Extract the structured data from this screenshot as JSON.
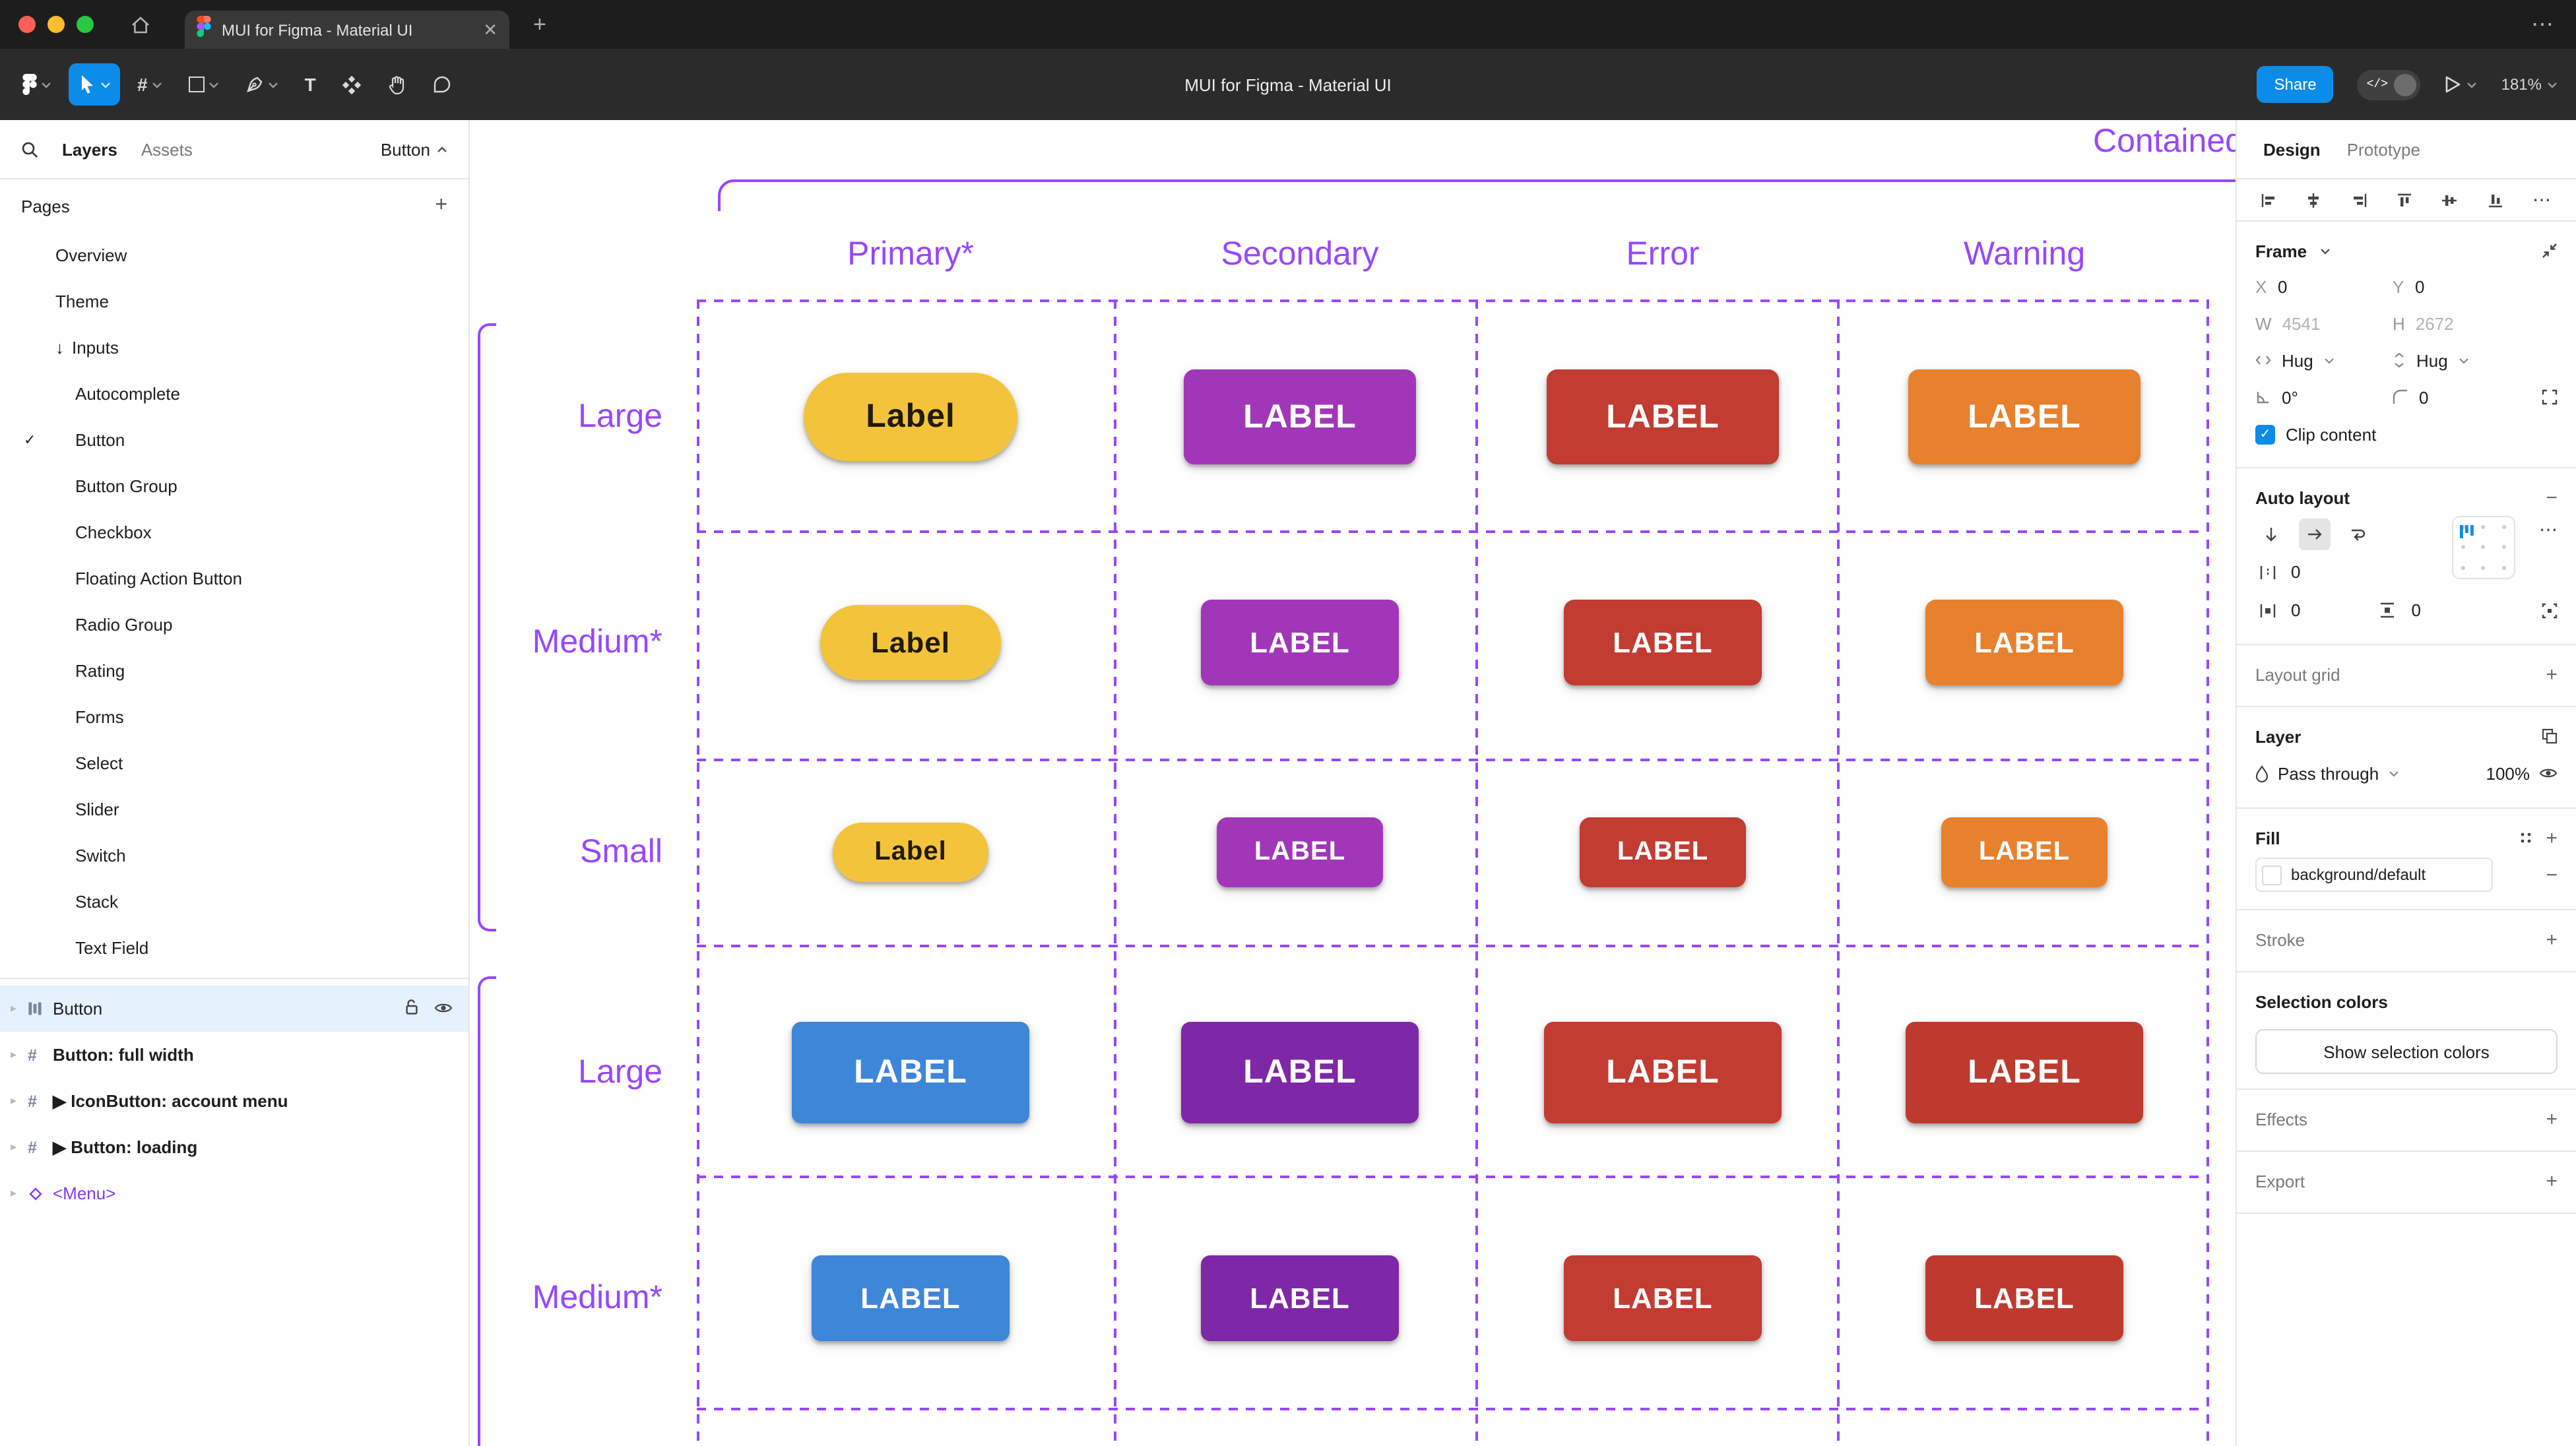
{
  "colors": {
    "figma_blue": "#0C8CE9",
    "accent_purple": "#9747FF",
    "selection_bg": "#E5F1FD"
  },
  "titlebar": {
    "tab_title": "MUI for Figma - Material UI",
    "new_tab": "+",
    "window_menu": "⋯",
    "tab_close": "✕"
  },
  "toolbar": {
    "title": "MUI for Figma - Material UI",
    "share_label": "Share",
    "zoom_label": "181%"
  },
  "left_panel": {
    "tabs": {
      "layers": "Layers",
      "assets": "Assets"
    },
    "context_label": "Button",
    "pages_header": "Pages",
    "add_page": "+",
    "pages": [
      {
        "label": "Overview",
        "indent": 1
      },
      {
        "label": "Theme",
        "indent": 1
      },
      {
        "label": "Inputs",
        "indent": 1,
        "prefix": "↓"
      },
      {
        "label": "Autocomplete",
        "indent": 2
      },
      {
        "label": "Button",
        "indent": 2,
        "checked": true
      },
      {
        "label": "Button Group",
        "indent": 2
      },
      {
        "label": "Checkbox",
        "indent": 2
      },
      {
        "label": "Floating Action Button",
        "indent": 2
      },
      {
        "label": "Radio Group",
        "indent": 2
      },
      {
        "label": "Rating",
        "indent": 2
      },
      {
        "label": "Forms",
        "indent": 2
      },
      {
        "label": "Select",
        "indent": 2
      },
      {
        "label": "Slider",
        "indent": 2
      },
      {
        "label": "Switch",
        "indent": 2
      },
      {
        "label": "Stack",
        "indent": 2
      },
      {
        "label": "Text Field",
        "indent": 2
      }
    ],
    "layers": [
      {
        "label": "Button",
        "icon": "auto-layout",
        "selected": true
      },
      {
        "label": "Button: full width",
        "icon": "frame",
        "bold": true
      },
      {
        "label": "▶ IconButton: account menu",
        "icon": "frame",
        "bold": true
      },
      {
        "label": "▶ Button: loading",
        "icon": "frame",
        "bold": true
      },
      {
        "label": "<Menu>",
        "icon": "instance",
        "instance": true
      }
    ]
  },
  "canvas": {
    "frame_title": "Contained",
    "columns": [
      "Primary*",
      "Secondary",
      "Error",
      "Warning"
    ],
    "rows": [
      {
        "label": "Large",
        "buttons": [
          {
            "text": "Label",
            "bg": "#F3C43B",
            "fg": "#211B04",
            "pill": true
          },
          {
            "text": "LABEL",
            "bg": "#A137B8",
            "fg": "#FFFFFF"
          },
          {
            "text": "LABEL",
            "bg": "#C23C31",
            "fg": "#FFFFFF"
          },
          {
            "text": "LABEL",
            "bg": "#E8812E",
            "fg": "#FFFFFF"
          }
        ]
      },
      {
        "label": "Medium*",
        "buttons": [
          {
            "text": "Label",
            "bg": "#F3C43B",
            "fg": "#211B04",
            "pill": true
          },
          {
            "text": "LABEL",
            "bg": "#A137B8",
            "fg": "#FFFFFF"
          },
          {
            "text": "LABEL",
            "bg": "#C23C31",
            "fg": "#FFFFFF"
          },
          {
            "text": "LABEL",
            "bg": "#E8812E",
            "fg": "#FFFFFF"
          }
        ]
      },
      {
        "label": "Small",
        "buttons": [
          {
            "text": "Label",
            "bg": "#F3C43B",
            "fg": "#211B04",
            "pill": true
          },
          {
            "text": "LABEL",
            "bg": "#A137B8",
            "fg": "#FFFFFF"
          },
          {
            "text": "LABEL",
            "bg": "#C23C31",
            "fg": "#FFFFFF"
          },
          {
            "text": "LABEL",
            "bg": "#E8812E",
            "fg": "#FFFFFF"
          }
        ]
      },
      {
        "label": "Large",
        "buttons": [
          {
            "text": "LABEL",
            "bg": "#3E86D8",
            "fg": "#FFFFFF"
          },
          {
            "text": "LABEL",
            "bg": "#7E28A8",
            "fg": "#FFFFFF"
          },
          {
            "text": "LABEL",
            "bg": "#C23C31",
            "fg": "#FFFFFF"
          },
          {
            "text": "LABEL",
            "bg": "#BE3A2F",
            "fg": "#FFFFFF"
          }
        ]
      },
      {
        "label": "Medium*",
        "buttons": [
          {
            "text": "LABEL",
            "bg": "#3E86D8",
            "fg": "#FFFFFF"
          },
          {
            "text": "LABEL",
            "bg": "#7E28A8",
            "fg": "#FFFFFF"
          },
          {
            "text": "LABEL",
            "bg": "#C23C31",
            "fg": "#FFFFFF"
          },
          {
            "text": "LABEL",
            "bg": "#BE3A2F",
            "fg": "#FFFFFF"
          }
        ]
      }
    ]
  },
  "right_panel": {
    "tabs": {
      "design": "Design",
      "prototype": "Prototype"
    },
    "frame": {
      "header": "Frame",
      "x_label": "X",
      "x_value": "0",
      "y_label": "Y",
      "y_value": "0",
      "w_label": "W",
      "w_value": "4541",
      "h_label": "H",
      "h_value": "2672",
      "hug_h": "Hug",
      "hug_v": "Hug",
      "rotation_value": "0°",
      "radius_value": "0",
      "clip_label": "Clip content"
    },
    "auto_layout": {
      "header": "Auto layout",
      "gap_value": "0",
      "pad_h_value": "0",
      "pad_v_value": "0",
      "more": "⋯",
      "remove": "−"
    },
    "layout_grid": {
      "header": "Layout grid",
      "add": "+"
    },
    "layer": {
      "header": "Layer",
      "blend_mode": "Pass through",
      "opacity": "100%"
    },
    "fill": {
      "header": "Fill",
      "value": "background/default",
      "add": "+",
      "remove": "−"
    },
    "stroke": {
      "header": "Stroke",
      "add": "+"
    },
    "selection_colors": {
      "header": "Selection colors",
      "button_label": "Show selection colors"
    },
    "effects": {
      "header": "Effects",
      "add": "+"
    },
    "export": {
      "header": "Export",
      "add": "+"
    }
  }
}
